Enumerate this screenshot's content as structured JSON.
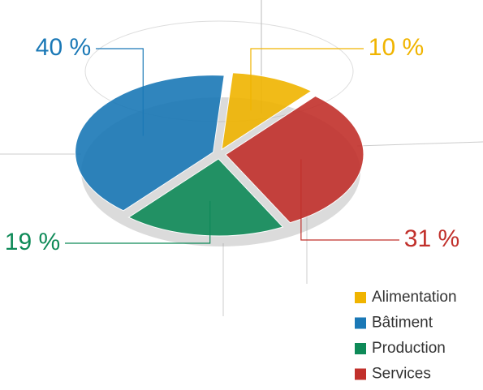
{
  "chart_data": {
    "type": "pie",
    "categories": [
      "Alimentation",
      "Bâtiment",
      "Production",
      "Services"
    ],
    "values": [
      10,
      40,
      19,
      31
    ],
    "value_labels": [
      "10 %",
      "40 %",
      "19 %",
      "31 %"
    ],
    "colors": [
      "#f0b400",
      "#1a78b6",
      "#0e8a58",
      "#c1302b"
    ]
  }
}
